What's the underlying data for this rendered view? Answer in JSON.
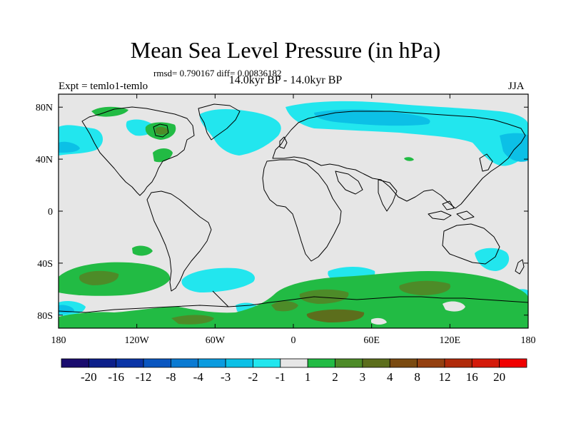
{
  "title": "Mean Sea Level Pressure (in hPa)",
  "stats": "rmsd= 0.790167 diff= 0.00836182",
  "period": "14.0kyr BP - 14.0kyr BP",
  "experiment": "Expt = temlo1-temlo",
  "season": "JJA",
  "map": {
    "lon_range": [
      -180,
      180
    ],
    "lat_range": [
      -90,
      90
    ],
    "lon_ticks": [
      {
        "value": -180,
        "label": "180"
      },
      {
        "value": -120,
        "label": "120W"
      },
      {
        "value": -60,
        "label": "60W"
      },
      {
        "value": 0,
        "label": "0"
      },
      {
        "value": 60,
        "label": "60E"
      },
      {
        "value": 120,
        "label": "120E"
      },
      {
        "value": 180,
        "label": "180"
      }
    ],
    "lat_ticks": [
      {
        "value": 80,
        "label": "80N"
      },
      {
        "value": 40,
        "label": "40N"
      },
      {
        "value": 0,
        "label": "0"
      },
      {
        "value": -40,
        "label": "40S"
      },
      {
        "value": -80,
        "label": "80S"
      }
    ],
    "background_color": "#e6e6e6"
  },
  "colorbar": {
    "labels": [
      "-20",
      "-16",
      "-12",
      "-8",
      "-4",
      "-3",
      "-2",
      "-1",
      "1",
      "2",
      "3",
      "4",
      "8",
      "12",
      "16",
      "20"
    ],
    "colors": [
      "#1a0c6e",
      "#0c1f8a",
      "#0a34a6",
      "#0a56c0",
      "#0a7ad2",
      "#0b9bdf",
      "#0cc0e6",
      "#22e6ee",
      "#e6e6e6",
      "#22bb44",
      "#4d8b28",
      "#5c6e1c",
      "#7a4a10",
      "#944010",
      "#b02a0a",
      "#d41a0a",
      "#f00000"
    ]
  }
}
